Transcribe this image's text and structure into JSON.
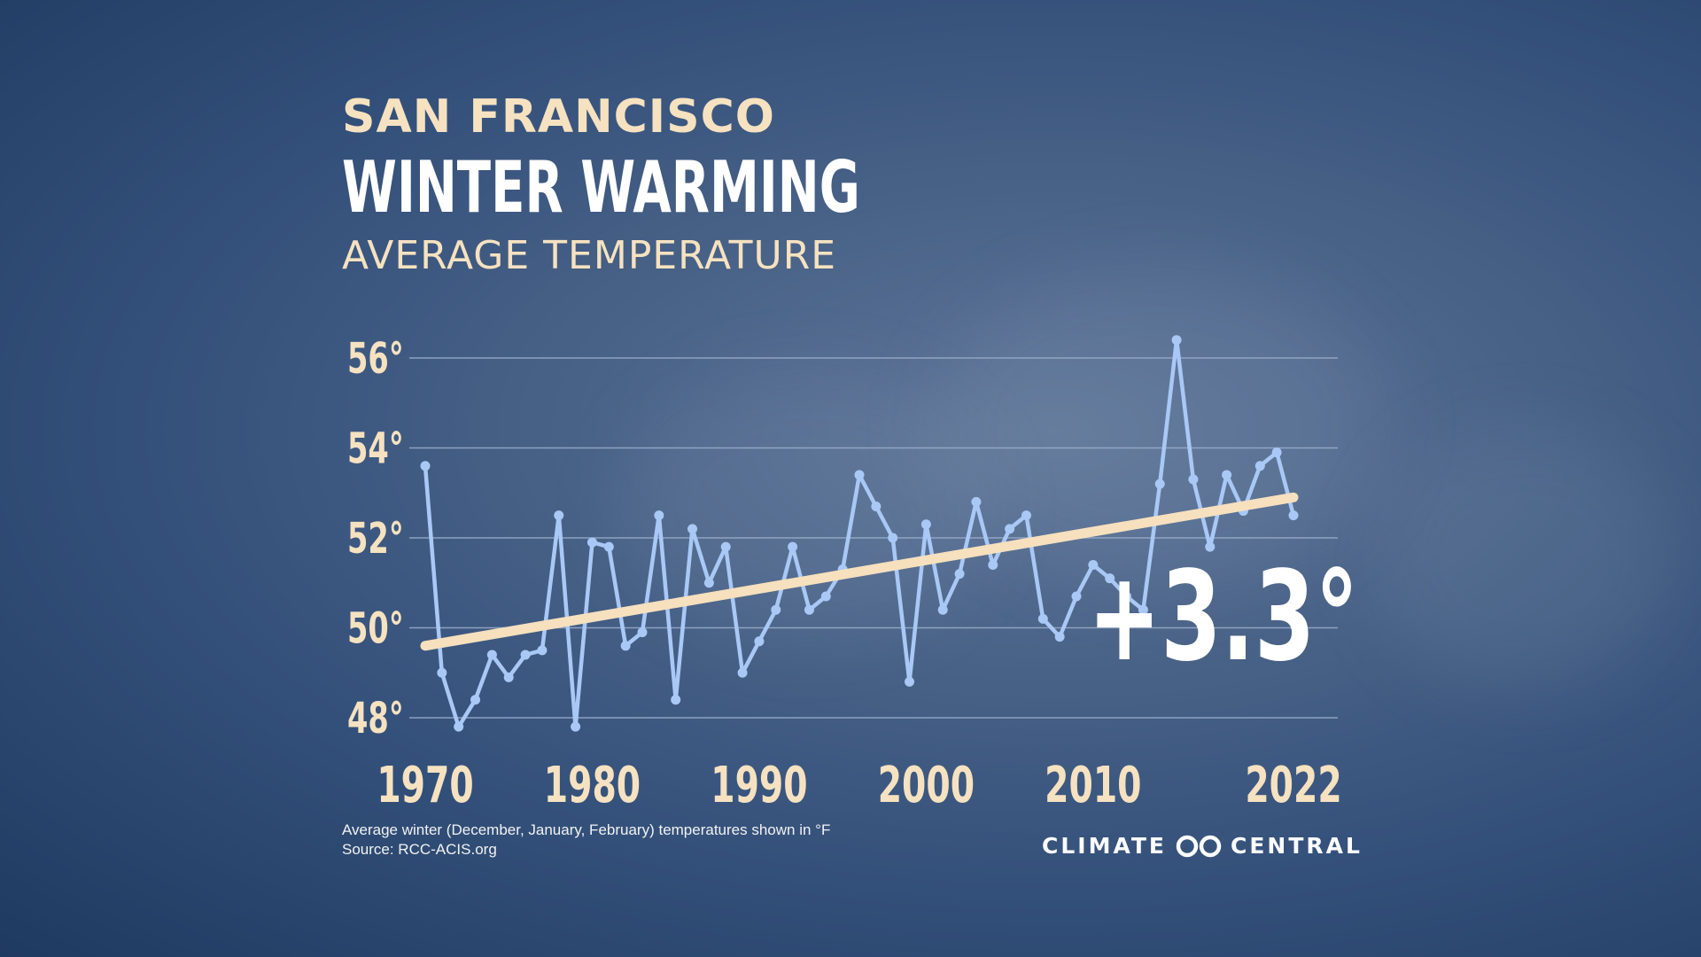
{
  "header": {
    "city": "SAN FRANCISCO",
    "title": "WINTER WARMING",
    "subtitle": "AVERAGE TEMPERATURE"
  },
  "chart_data": {
    "type": "line",
    "x": [
      1970,
      1971,
      1972,
      1973,
      1974,
      1975,
      1976,
      1977,
      1978,
      1979,
      1980,
      1981,
      1982,
      1983,
      1984,
      1985,
      1986,
      1987,
      1988,
      1989,
      1990,
      1991,
      1992,
      1993,
      1994,
      1995,
      1996,
      1997,
      1998,
      1999,
      2000,
      2001,
      2002,
      2003,
      2004,
      2005,
      2006,
      2007,
      2008,
      2009,
      2010,
      2011,
      2012,
      2013,
      2014,
      2015,
      2016,
      2017,
      2018,
      2019,
      2020,
      2021,
      2022
    ],
    "series": [
      {
        "values": [
          53.6,
          49.0,
          47.8,
          48.4,
          49.4,
          48.9,
          49.4,
          49.5,
          52.5,
          47.8,
          51.9,
          51.8,
          49.6,
          49.9,
          52.5,
          48.4,
          52.2,
          51.0,
          51.8,
          49.0,
          49.7,
          50.4,
          51.8,
          50.4,
          50.7,
          51.3,
          53.4,
          52.7,
          52.0,
          48.8,
          52.3,
          50.4,
          51.2,
          52.8,
          51.4,
          52.2,
          52.5,
          50.2,
          49.8,
          50.7,
          51.4,
          51.1,
          50.7,
          50.4,
          53.2,
          56.4,
          53.3,
          51.8,
          53.4,
          52.6,
          53.6,
          53.9,
          52.5
        ]
      }
    ],
    "trend": {
      "start": [
        1970,
        49.6
      ],
      "end": [
        2022,
        52.9
      ]
    },
    "ylim": [
      48,
      56
    ],
    "yticks": [
      56,
      54,
      52,
      50,
      48
    ],
    "ytick_labels": [
      "56°",
      "54°",
      "52°",
      "50°",
      "48°"
    ],
    "xticks": [
      1970,
      1980,
      1990,
      2000,
      2010,
      2022
    ],
    "xtick_labels": [
      "1970",
      "1980",
      "1990",
      "2000",
      "2010",
      "2022"
    ],
    "grid": true,
    "annotation": "+3.3°",
    "colors": {
      "line": "#a9c8f5",
      "trend": "#f6e0bd",
      "grid": "#9aaecb",
      "tick_text": "#f6e2c0"
    }
  },
  "footnote": {
    "line1": "Average winter (December, January, February) temperatures shown in °F",
    "line2": "Source: RCC-ACIS.org"
  },
  "logo": {
    "left": "CLIMATE",
    "right": "CENTRAL",
    "icon": "climate-central-logo-icon"
  }
}
